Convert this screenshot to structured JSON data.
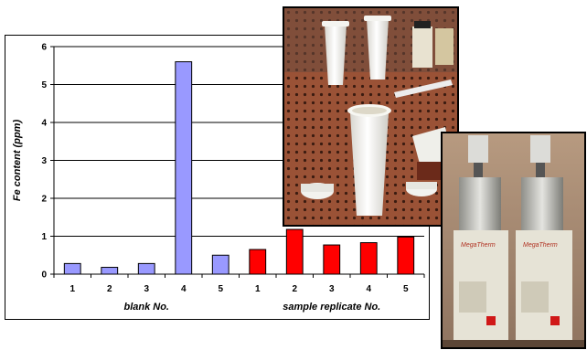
{
  "chart_data": {
    "type": "bar",
    "ylabel": "Fe content (ppm)",
    "ylim": [
      0,
      6
    ],
    "yticks": [
      "0",
      "1",
      "2",
      "3",
      "4",
      "5",
      "6"
    ],
    "grid": true,
    "groups": [
      {
        "label": "blank No.",
        "color": "#9999ff",
        "categories": [
          "1",
          "2",
          "3",
          "4",
          "5"
        ],
        "values": [
          0.28,
          0.18,
          0.28,
          5.6,
          0.5
        ]
      },
      {
        "label": "sample replicate No.",
        "color": "#ff0000",
        "categories": [
          "1",
          "2",
          "3",
          "4",
          "5"
        ],
        "values": [
          0.65,
          1.18,
          0.77,
          0.83,
          0.98
        ]
      }
    ]
  },
  "photos": [
    {
      "name": "sample-containers-photo"
    },
    {
      "name": "digestion-units-photo",
      "brand_text": "MegaTherm"
    }
  ]
}
